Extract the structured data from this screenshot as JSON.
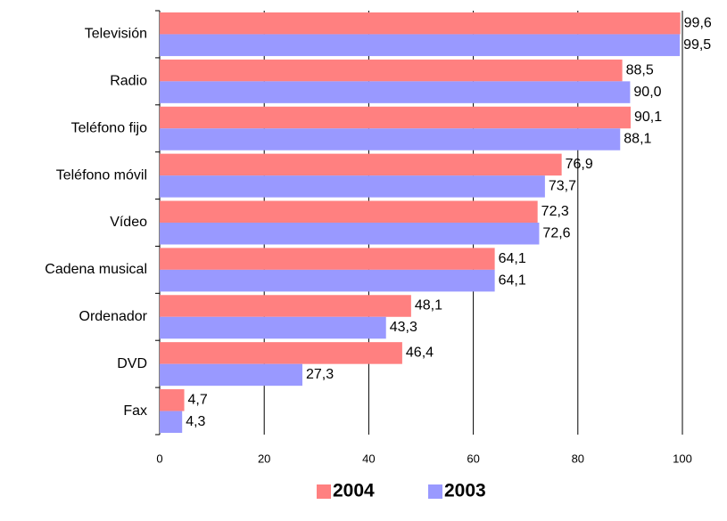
{
  "chart_data": {
    "type": "bar",
    "orientation": "horizontal",
    "categories": [
      "Televisión",
      "Radio",
      "Teléfono fijo",
      "Teléfono móvil",
      "Vídeo",
      "Cadena musical",
      "Ordenador",
      "DVD",
      "Fax"
    ],
    "series": [
      {
        "name": "2004",
        "color": "#ff8080",
        "values": [
          99.6,
          88.5,
          90.1,
          76.9,
          72.3,
          64.1,
          48.1,
          46.4,
          4.7
        ],
        "value_labels": [
          "99,6",
          "88,5",
          "90,1",
          "76,9",
          "72,3",
          "64,1",
          "48,1",
          "46,4",
          "4,7"
        ]
      },
      {
        "name": "2003",
        "color": "#9999ff",
        "values": [
          99.5,
          90.0,
          88.1,
          73.7,
          72.6,
          64.1,
          43.3,
          27.3,
          4.3
        ],
        "value_labels": [
          "99,5",
          "90,0",
          "88,1",
          "73,7",
          "72,6",
          "64,1",
          "43,3",
          "27,3",
          "4,3"
        ]
      }
    ],
    "xlim": [
      0,
      100
    ],
    "xticks": [
      0,
      20,
      40,
      60,
      80,
      100
    ],
    "grid": true,
    "legend": "bottom"
  }
}
